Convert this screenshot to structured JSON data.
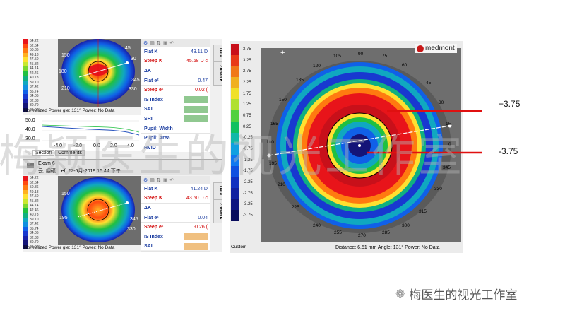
{
  "colors": {
    "red": "#e01010",
    "accent": "#2a55c0"
  },
  "left_scale_top": [
    "54.22",
    "52.54",
    "50.86",
    "49.18",
    "47.50",
    "45.82",
    "44.14",
    "42.46",
    "40.78",
    "39.10",
    "37.42",
    "35.74",
    "34.06",
    "32.38",
    "30.70",
    "29.02"
  ],
  "left_scale_bottom": [
    "54.22",
    "52.54",
    "50.86",
    "49.18",
    "47.50",
    "45.82",
    "44.14",
    "42.46",
    "40.78",
    "39.10",
    "37.42",
    "35.74",
    "34.06",
    "32.38",
    "30.70",
    "29.02"
  ],
  "scale_colors": [
    "#e8141a",
    "#ff4a10",
    "#ff7a10",
    "#ffb020",
    "#ffe030",
    "#c8e830",
    "#7ad830",
    "#20c040",
    "#10b080",
    "#10a8c0",
    "#1090e0",
    "#1060e8",
    "#1838d0",
    "#1820a8",
    "#141478",
    "#0c0c50"
  ],
  "map_ticks": {
    "a105": "105",
    "a90": "90",
    "a75": "75",
    "a60": "60",
    "a45": "45",
    "a30": "30",
    "a15": "15",
    "a0": "0",
    "a150": "150",
    "a135": "135",
    "a165": "165",
    "a180": "180",
    "a195": "195",
    "a210": "210",
    "a225": "225",
    "a240": "240",
    "a255": "255",
    "a270": "270",
    "a285": "285",
    "a300": "300",
    "a315": "315",
    "a330": "330",
    "a345": "345",
    "a120": "120"
  },
  "top_panel": {
    "rows": [
      {
        "label": "Flat K",
        "value": "43.11 D"
      },
      {
        "label": "Steep K",
        "value": "45.68 D c"
      },
      {
        "label": "ΔK",
        "value": ""
      },
      {
        "label": "Flat e²",
        "value": "0.47"
      },
      {
        "label": "Steep e²",
        "value": "0.02 ("
      },
      {
        "label": "IS Index",
        "value": ""
      },
      {
        "label": "SAI",
        "value": ""
      },
      {
        "label": "SRI",
        "value": ""
      },
      {
        "label": "Pupil: Width",
        "value": ""
      },
      {
        "label": "Pupil: Area",
        "value": ""
      },
      {
        "label": "HVID",
        "value": ""
      }
    ],
    "status": "Normalized Power  gle:  131°   Power:  No Data"
  },
  "profile": {
    "y_ticks": [
      "50.0",
      "40.0",
      "30.0"
    ],
    "x_ticks": [
      "-4.0",
      "-2.0",
      "0.0",
      "2.0",
      "4.0"
    ],
    "tab_section": "Section",
    "tab_comments": "Comments"
  },
  "exam": {
    "title": "Exam 6",
    "subtitle": "云, 綳硕: Left 22-6月-2019 15:44 下午"
  },
  "bottom_panel": {
    "rows": [
      {
        "label": "Flat K",
        "value": "41.24 D"
      },
      {
        "label": "Steep K",
        "value": "43.50 D c"
      },
      {
        "label": "ΔK",
        "value": ""
      },
      {
        "label": "Flat e²",
        "value": "0.04"
      },
      {
        "label": "Steep e²",
        "value": "-0.26 ("
      },
      {
        "label": "IS Index",
        "value": ""
      },
      {
        "label": "SAI",
        "value": ""
      }
    ],
    "status": "Normalized Power  gle:  131°   Power:  No Data"
  },
  "side_tabs": {
    "data": "Data",
    "zoned": "Zoned K"
  },
  "right": {
    "scale": [
      "3.75",
      "3.25",
      "2.75",
      "2.25",
      "1.75",
      "1.25",
      "0.75",
      "0.25",
      "-0.25",
      "-0.75",
      "-1.25",
      "-1.75",
      "-2.25",
      "-2.75",
      "-3.25",
      "-3.75"
    ],
    "scale_colors": [
      "#c8101a",
      "#e83a18",
      "#f07818",
      "#f0b020",
      "#f0e028",
      "#b0e030",
      "#50d040",
      "#10c060",
      "#10b8a8",
      "#10a0e0",
      "#1078f0",
      "#1050e0",
      "#1030c0",
      "#1020a0",
      "#0c1480",
      "#080c5c"
    ],
    "custom": "Custom",
    "logo": "medmont",
    "status": "Distance:  6.51 mm   Angle:  131°   Power:   No Data"
  },
  "annotations": {
    "plus": "+3.75",
    "minus": "-3.75"
  },
  "watermark": "梅颖医生的视光工作室",
  "wechat_label": "梅医生的视光工作室"
}
